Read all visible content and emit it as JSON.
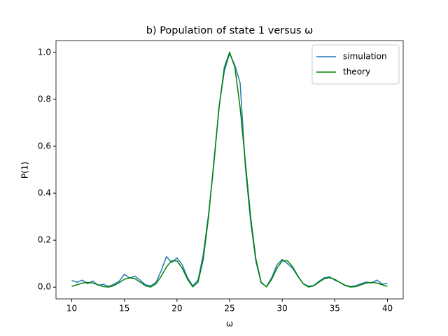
{
  "chart_data": {
    "type": "line",
    "title": "b) Population of state 1 versus ω",
    "xlabel": "ω",
    "ylabel": "P(1)",
    "x": [
      10,
      10.5,
      11,
      11.5,
      12,
      12.5,
      13,
      13.5,
      14,
      14.5,
      15,
      15.5,
      16,
      16.5,
      17,
      17.5,
      18,
      18.5,
      19,
      19.5,
      20,
      20.5,
      21,
      21.5,
      22,
      22.5,
      23,
      23.5,
      24,
      24.5,
      25,
      25.5,
      26,
      26.5,
      27,
      27.5,
      28,
      28.5,
      29,
      29.5,
      30,
      30.5,
      31,
      31.5,
      32,
      32.5,
      33,
      33.5,
      34,
      34.5,
      35,
      35.5,
      36,
      36.5,
      37,
      37.5,
      38,
      38.5,
      39,
      39.5,
      40
    ],
    "series": [
      {
        "name": "simulation",
        "color": "#1f77b4",
        "values": [
          0.028,
          0.021,
          0.03,
          0.015,
          0.026,
          0.008,
          0.012,
          0.003,
          0.012,
          0.025,
          0.055,
          0.038,
          0.047,
          0.03,
          0.01,
          0.006,
          0.02,
          0.07,
          0.13,
          0.105,
          0.125,
          0.095,
          0.04,
          0.005,
          0.03,
          0.14,
          0.31,
          0.52,
          0.77,
          0.92,
          0.995,
          0.945,
          0.87,
          0.51,
          0.28,
          0.11,
          0.018,
          0.003,
          0.04,
          0.095,
          0.118,
          0.1,
          0.08,
          0.045,
          0.015,
          0.004,
          0.007,
          0.025,
          0.04,
          0.044,
          0.03,
          0.02,
          0.008,
          0.003,
          0.006,
          0.015,
          0.022,
          0.018,
          0.03,
          0.013,
          0.016
        ]
      },
      {
        "name": "theory",
        "color": "#008000",
        "values": [
          0.0031,
          0.0104,
          0.0175,
          0.0205,
          0.0176,
          0.0102,
          0.0025,
          0.0002,
          0.0066,
          0.0194,
          0.0334,
          0.0406,
          0.0361,
          0.0215,
          0.0056,
          0.0003,
          0.0143,
          0.0466,
          0.0862,
          0.1126,
          0.1119,
          0.0807,
          0.0334,
          0.0013,
          0.0211,
          0.1196,
          0.2989,
          0.5317,
          0.7645,
          0.9366,
          1,
          0.9366,
          0.7645,
          0.5317,
          0.2989,
          0.1196,
          0.0211,
          0.0013,
          0.0334,
          0.0807,
          0.1119,
          0.1126,
          0.0862,
          0.0466,
          0.0143,
          0.0003,
          0.0056,
          0.0215,
          0.0361,
          0.0406,
          0.0334,
          0.0194,
          0.0066,
          0.0002,
          0.0025,
          0.0102,
          0.0176,
          0.0205,
          0.0175,
          0.0104,
          0.0031
        ]
      }
    ],
    "xlim": [
      8.5,
      41.5
    ],
    "ylim": [
      -0.05,
      1.05
    ],
    "xticks": [
      10,
      15,
      20,
      25,
      30,
      35,
      40
    ],
    "yticks": [
      {
        "value": 0,
        "label": "0.0"
      },
      {
        "value": 0.2,
        "label": "0.2"
      },
      {
        "value": 0.4,
        "label": "0.4"
      },
      {
        "value": 0.6,
        "label": "0.6"
      },
      {
        "value": 0.8,
        "label": "0.8"
      },
      {
        "value": 1,
        "label": "1.0"
      }
    ],
    "legend": "upper right",
    "grid": false
  }
}
